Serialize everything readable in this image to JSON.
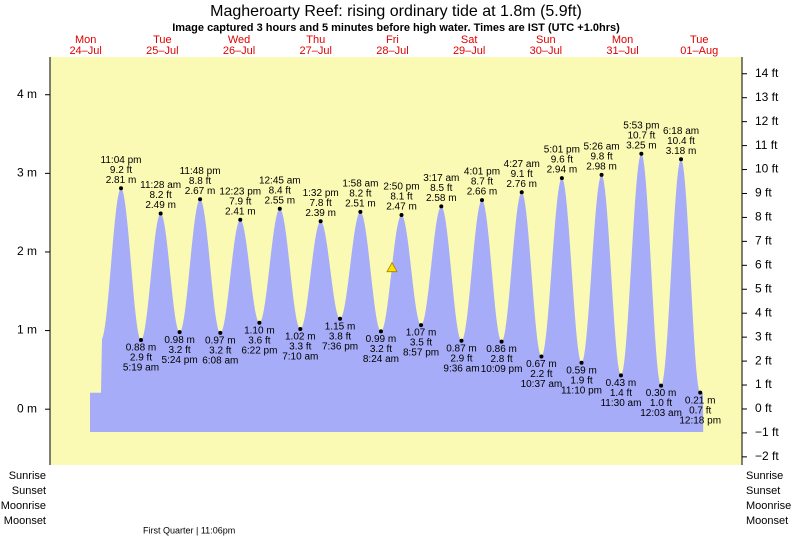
{
  "chart_data": {
    "type": "area",
    "title": "Magheroarty Reef: rising  ordinary tide at 1.8m (5.9ft)",
    "subtitle": "Image captured 3 hours and 5 minutes before high water. Times are IST (UTC +1.0hrs)",
    "color": "#a6acf7",
    "background": "#fafab4",
    "ylim": [
      -0.71,
      4.48
    ],
    "yticks": [
      {
        "value": 0,
        "label": "0 m"
      },
      {
        "value": 1,
        "label": "1 m"
      },
      {
        "value": 2,
        "label": "2 m"
      },
      {
        "value": 3,
        "label": "3 m"
      },
      {
        "value": 4,
        "label": "4 m"
      }
    ],
    "y2lim": [
      -2.34,
      14.7
    ],
    "y2ticks": [
      {
        "value": -2,
        "label": "−2 ft"
      },
      {
        "value": -1,
        "label": "−1 ft"
      },
      {
        "value": 0,
        "label": "0 ft"
      },
      {
        "value": 1,
        "label": "1 ft"
      },
      {
        "value": 2,
        "label": "2 ft"
      },
      {
        "value": 3,
        "label": "3 ft"
      },
      {
        "value": 4,
        "label": "4 ft"
      },
      {
        "value": 5,
        "label": "5 ft"
      },
      {
        "value": 6,
        "label": "6 ft"
      },
      {
        "value": 7,
        "label": "7 ft"
      },
      {
        "value": 8,
        "label": "8 ft"
      },
      {
        "value": 9,
        "label": "9 ft"
      },
      {
        "value": 10,
        "label": "10 ft"
      },
      {
        "value": 11,
        "label": "11 ft"
      },
      {
        "value": 12,
        "label": "12 ft"
      },
      {
        "value": 13,
        "label": "13 ft"
      },
      {
        "value": 14,
        "label": "14 ft"
      }
    ],
    "current_level": 1.8,
    "days": [
      {
        "weekday": "Mon",
        "date": "24–Jul",
        "tides": [
          {
            "time": "11:04 pm",
            "value": 2.81,
            "value_label": "2.81 m",
            "feet_label": "9.2 ft"
          }
        ]
      },
      {
        "weekday": "Tue",
        "date": "25–Jul",
        "tides": [
          {
            "time": "5:19 am",
            "value": 0.88,
            "value_label": "0.88 m",
            "feet_label": "2.9 ft"
          },
          {
            "time": "11:28 am",
            "value": 2.49,
            "value_label": "2.49 m",
            "feet_label": "8.2 ft"
          },
          {
            "time": "5:24 pm",
            "value": 0.98,
            "value_label": "0.98 m",
            "feet_label": "3.2 ft"
          },
          {
            "time": "11:48 pm",
            "value": 2.67,
            "value_label": "2.67 m",
            "feet_label": "8.8 ft"
          }
        ]
      },
      {
        "weekday": "Wed",
        "date": "26–Jul",
        "tides": [
          {
            "time": "6:08 am",
            "value": 0.97,
            "value_label": "0.97 m",
            "feet_label": "3.2 ft"
          },
          {
            "time": "12:23 pm",
            "value": 2.41,
            "value_label": "2.41 m",
            "feet_label": "7.9 ft"
          },
          {
            "time": "6:22 pm",
            "value": 1.1,
            "value_label": "1.10 m",
            "feet_label": "3.6 ft"
          }
        ]
      },
      {
        "weekday": "Thu",
        "date": "27–Jul",
        "tides": [
          {
            "time": "12:45 am",
            "value": 2.55,
            "value_label": "2.55 m",
            "feet_label": "8.4 ft"
          },
          {
            "time": "7:10 am",
            "value": 1.02,
            "value_label": "1.02 m",
            "feet_label": "3.3 ft"
          },
          {
            "time": "1:32 pm",
            "value": 2.39,
            "value_label": "2.39 m",
            "feet_label": "7.8 ft"
          },
          {
            "time": "7:36 pm",
            "value": 1.15,
            "value_label": "1.15 m",
            "feet_label": "3.8 ft"
          }
        ]
      },
      {
        "weekday": "Fri",
        "date": "28–Jul",
        "tides": [
          {
            "time": "1:58 am",
            "value": 2.51,
            "value_label": "2.51 m",
            "feet_label": "8.2 ft"
          },
          {
            "time": "8:24 am",
            "value": 0.99,
            "value_label": "0.99 m",
            "feet_label": "3.2 ft"
          },
          {
            "time": "2:50 pm",
            "value": 2.47,
            "value_label": "2.47 m",
            "feet_label": "8.1 ft"
          },
          {
            "time": "8:57 pm",
            "value": 1.07,
            "value_label": "1.07 m",
            "feet_label": "3.5 ft"
          }
        ]
      },
      {
        "weekday": "Sat",
        "date": "29–Jul",
        "tides": [
          {
            "time": "3:17 am",
            "value": 2.58,
            "value_label": "2.58 m",
            "feet_label": "8.5 ft"
          },
          {
            "time": "9:36 am",
            "value": 0.87,
            "value_label": "0.87 m",
            "feet_label": "2.9 ft"
          },
          {
            "time": "4:01 pm",
            "value": 2.66,
            "value_label": "2.66 m",
            "feet_label": "8.7 ft"
          },
          {
            "time": "10:09 pm",
            "value": 0.86,
            "value_label": "0.86 m",
            "feet_label": "2.8 ft"
          }
        ]
      },
      {
        "weekday": "Sun",
        "date": "30–Jul",
        "tides": [
          {
            "time": "4:27 am",
            "value": 2.76,
            "value_label": "2.76 m",
            "feet_label": "9.1 ft"
          },
          {
            "time": "10:37 am",
            "value": 0.67,
            "value_label": "0.67 m",
            "feet_label": "2.2 ft"
          },
          {
            "time": "5:01 pm",
            "value": 2.94,
            "value_label": "2.94 m",
            "feet_label": "9.6 ft"
          },
          {
            "time": "11:10 pm",
            "value": 0.59,
            "value_label": "0.59 m",
            "feet_label": "1.9 ft"
          }
        ]
      },
      {
        "weekday": "Mon",
        "date": "31–Jul",
        "tides": [
          {
            "time": "5:26 am",
            "value": 2.98,
            "value_label": "2.98 m",
            "feet_label": "9.8 ft"
          },
          {
            "time": "11:30 am",
            "value": 0.43,
            "value_label": "0.43 m",
            "feet_label": "1.4 ft"
          },
          {
            "time": "5:53 pm",
            "value": 3.25,
            "value_label": "3.25 m",
            "feet_label": "10.7 ft"
          }
        ]
      },
      {
        "weekday": "Tue",
        "date": "01–Aug",
        "tides": [
          {
            "time": "12:03 am",
            "value": 0.3,
            "value_label": "0.30 m",
            "feet_label": "1.0 ft"
          },
          {
            "time": "6:18 am",
            "value": 3.18,
            "value_label": "3.18 m",
            "feet_label": "10.4 ft"
          },
          {
            "time": "12:18 pm",
            "value": 0.21,
            "value_label": "0.21 m",
            "feet_label": "0.7 ft"
          }
        ]
      }
    ],
    "row_labels": [
      "Sunrise",
      "Sunset",
      "Moonrise",
      "Moonset"
    ],
    "moon_phase": "First Quarter | 11:06pm"
  }
}
